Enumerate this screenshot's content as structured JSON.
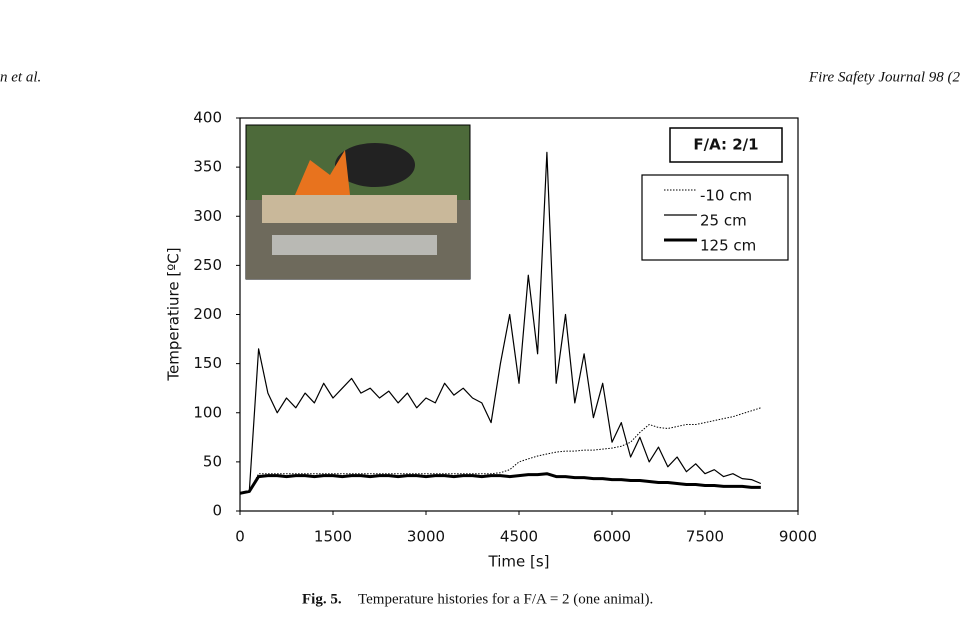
{
  "header": {
    "left": "n et al.",
    "right": "Fire Safety Journal 98 (2"
  },
  "chart_data": {
    "type": "line",
    "xlabel": "Time [s]",
    "ylabel": "Temperatiure [ºC]",
    "annotation": "F/A: 2/1",
    "xlim": [
      0,
      9000
    ],
    "xticks": [
      0,
      1500,
      3000,
      4500,
      6000,
      7500,
      9000
    ],
    "ylim": [
      0,
      400
    ],
    "yticks": [
      0,
      50,
      100,
      150,
      200,
      250,
      300,
      350,
      400
    ],
    "grid": false,
    "legend": "upper right",
    "x": [
      0,
      150,
      300,
      450,
      600,
      750,
      900,
      1050,
      1200,
      1350,
      1500,
      1650,
      1800,
      1950,
      2100,
      2250,
      2400,
      2550,
      2700,
      2850,
      3000,
      3150,
      3300,
      3450,
      3600,
      3750,
      3900,
      4050,
      4200,
      4350,
      4500,
      4650,
      4800,
      4950,
      5100,
      5250,
      5400,
      5550,
      5700,
      5850,
      6000,
      6150,
      6300,
      6450,
      6600,
      6750,
      6900,
      7050,
      7200,
      7350,
      7500,
      7650,
      7800,
      7950,
      8100,
      8250,
      8400
    ],
    "series": [
      {
        "name": "-10 cm",
        "color": "#000000",
        "linestyle": "dotted",
        "linewidth": 1,
        "values": [
          18,
          20,
          38,
          38,
          38,
          38,
          38,
          38,
          38,
          38,
          38,
          38,
          38,
          38,
          38,
          38,
          38,
          38,
          38,
          38,
          38,
          38,
          38,
          38,
          38,
          38,
          38,
          38,
          39,
          42,
          50,
          53,
          56,
          58,
          60,
          61,
          61,
          62,
          62,
          63,
          64,
          66,
          70,
          80,
          88,
          85,
          84,
          86,
          88,
          88,
          90,
          92,
          94,
          96,
          99,
          102,
          105
        ]
      },
      {
        "name": "25 cm",
        "color": "#000000",
        "linestyle": "solid",
        "linewidth": 1.2,
        "values": [
          18,
          20,
          165,
          120,
          100,
          115,
          105,
          120,
          110,
          130,
          115,
          125,
          135,
          120,
          125,
          115,
          122,
          110,
          120,
          105,
          115,
          110,
          130,
          118,
          125,
          115,
          110,
          90,
          150,
          200,
          130,
          240,
          160,
          365,
          130,
          200,
          110,
          160,
          95,
          130,
          70,
          90,
          55,
          75,
          50,
          65,
          45,
          55,
          40,
          48,
          38,
          42,
          35,
          38,
          33,
          32,
          28
        ]
      },
      {
        "name": "125 cm",
        "color": "#000000",
        "linestyle": "solid",
        "linewidth": 3,
        "values": [
          18,
          20,
          35,
          36,
          36,
          35,
          36,
          36,
          35,
          36,
          36,
          35,
          36,
          36,
          35,
          36,
          36,
          35,
          36,
          36,
          35,
          36,
          36,
          35,
          36,
          36,
          35,
          36,
          36,
          35,
          36,
          37,
          37,
          38,
          35,
          35,
          34,
          34,
          33,
          33,
          32,
          32,
          31,
          31,
          30,
          29,
          29,
          28,
          27,
          27,
          26,
          26,
          25,
          25,
          25,
          24,
          24
        ]
      }
    ]
  },
  "caption": {
    "label": "Fig. 5.",
    "text": "Temperature histories for a F/A = 2 (one animal)."
  }
}
